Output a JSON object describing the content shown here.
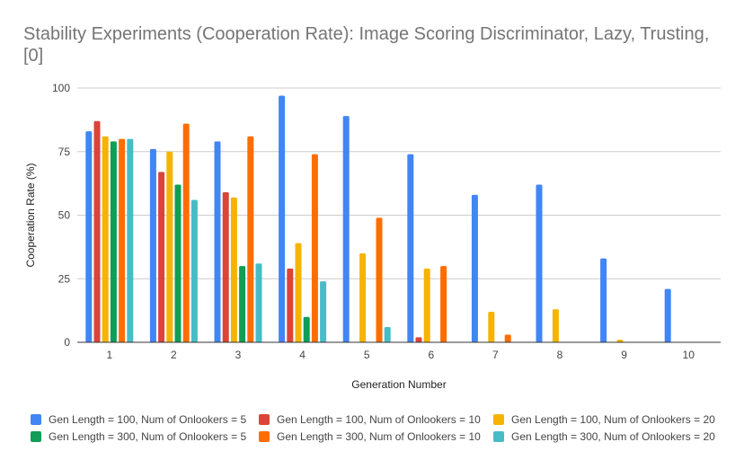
{
  "title": "Stability Experiments (Cooperation Rate): Image Scoring Discriminator, Lazy, Trusting, [0]",
  "chart_data": {
    "type": "bar",
    "title": "Stability Experiments (Cooperation Rate): Image Scoring Discriminator, Lazy, Trusting, [0]",
    "xlabel": "Generation Number",
    "ylabel": "Cooperation Rate (%)",
    "ylim": [
      0,
      100
    ],
    "yticks": [
      "0",
      "25",
      "50",
      "75",
      "100"
    ],
    "grid": true,
    "legend_position": "bottom",
    "categories": [
      "1",
      "2",
      "3",
      "4",
      "5",
      "6",
      "7",
      "8",
      "9",
      "10"
    ],
    "series": [
      {
        "name": "Gen Length = 100, Num of Onlookers = 5",
        "color": "#4285f4",
        "values": [
          83,
          76,
          79,
          97,
          89,
          74,
          58,
          62,
          33,
          21
        ]
      },
      {
        "name": "Gen Length = 100, Num of Onlookers = 10",
        "color": "#db4437",
        "values": [
          87,
          67,
          59,
          29,
          0,
          2,
          0,
          0,
          0,
          0
        ]
      },
      {
        "name": "Gen Length = 100, Num of Onlookers = 20",
        "color": "#f4b400",
        "values": [
          81,
          75,
          57,
          39,
          35,
          29,
          12,
          13,
          1,
          0
        ]
      },
      {
        "name": "Gen Length = 300, Num of Onlookers = 5",
        "color": "#0f9d58",
        "values": [
          79,
          62,
          30,
          10,
          0,
          0,
          0,
          0,
          0,
          0
        ]
      },
      {
        "name": "Gen Length = 300, Num of Onlookers = 10",
        "color": "#ff6d01",
        "values": [
          80,
          86,
          81,
          74,
          49,
          30,
          3,
          0,
          0,
          0
        ]
      },
      {
        "name": "Gen Length = 300, Num of Onlookers = 20",
        "color": "#46bdc6",
        "values": [
          80,
          56,
          31,
          24,
          6,
          0,
          0,
          0,
          0,
          0
        ]
      }
    ]
  }
}
